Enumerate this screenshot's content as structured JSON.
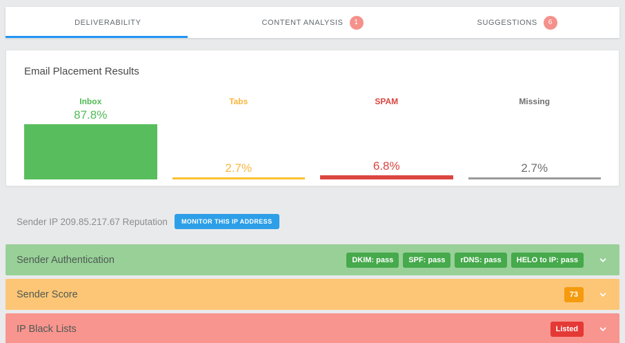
{
  "colors": {
    "accent_blue": "#2196f3",
    "tab_badge_bg": "#f5918b",
    "page_bg": "#e9eaeb"
  },
  "tabs": [
    {
      "label": "DELIVERABILITY",
      "active": true
    },
    {
      "label": "CONTENT ANALYSIS",
      "badge": "1",
      "active": false
    },
    {
      "label": "SUGGESTIONS",
      "badge": "6",
      "active": false
    }
  ],
  "placement_card": {
    "title": "Email Placement Results"
  },
  "chart_data": {
    "type": "bar",
    "title": "Email Placement Results",
    "categories": [
      "Inbox",
      "Tabs",
      "SPAM",
      "Missing"
    ],
    "values": [
      87.8,
      2.7,
      6.8,
      2.7
    ],
    "value_labels": [
      "87.8%",
      "2.7%",
      "6.8%",
      "2.7%"
    ],
    "bar_colors": [
      "#58bd5c",
      "#fcc12f",
      "#dc4641",
      "#9a9a9a"
    ],
    "text_colors": [
      "#4fba55",
      "#fbb53e",
      "#d9443e",
      "#6e6e6e"
    ],
    "xlabel": "",
    "ylabel": "",
    "ylim": [
      0,
      100
    ],
    "grid": false,
    "legend": false
  },
  "sender_ip": {
    "text": "Sender IP 209.85.217.67 Reputation",
    "button_label": "MONITOR THIS IP ADDRESS",
    "button_bg": "#2d9fe8"
  },
  "accordions": [
    {
      "label": "Sender Authentication",
      "bg": "#98d098",
      "badge_bg": "#46a94c",
      "badges": [
        "DKIM: pass",
        "SPF: pass",
        "rDNS: pass",
        "HELO to IP: pass"
      ]
    },
    {
      "label": "Sender Score",
      "bg": "#fdc676",
      "badge_bg": "#f59b0e",
      "badges": [
        "73"
      ]
    },
    {
      "label": "IP Black Lists",
      "bg": "#f8958f",
      "badge_bg": "#e53935",
      "badges": [
        "Listed"
      ]
    }
  ]
}
